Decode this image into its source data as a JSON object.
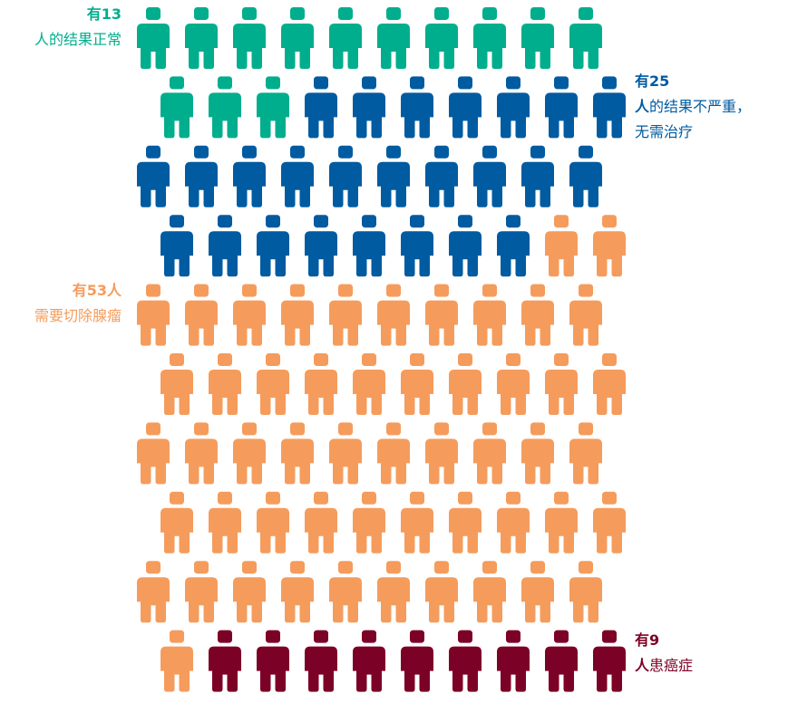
{
  "chart_data": {
    "type": "pictogram",
    "total": 100,
    "groups": [
      {
        "key": "normal",
        "count": 13,
        "color": "#00AE8D",
        "label_line1_strong": "有13",
        "label_line2": "人的结果正常"
      },
      {
        "key": "mild",
        "count": 25,
        "color": "#005BA1",
        "label_line1_strong": "有25",
        "label_line2_strong": "人",
        "label_line2": "的结果不严重，",
        "label_line3": "无需治疗"
      },
      {
        "key": "adenoma",
        "count": 53,
        "color": "#F59C5C",
        "label_line1_strong": "有53人",
        "label_line2": "需要切除腺瘤"
      },
      {
        "key": "cancer",
        "count": 9,
        "color": "#7C0126",
        "label_line1_strong": "有9",
        "label_line2_strong": "人",
        "label_line2": "患癌症"
      }
    ]
  }
}
